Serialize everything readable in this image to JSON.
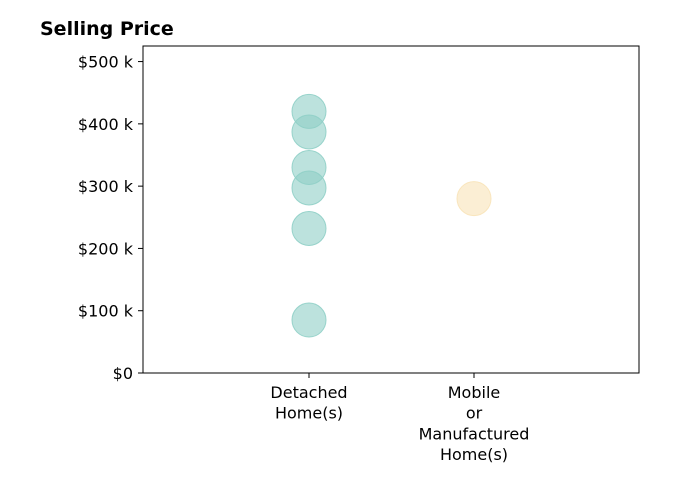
{
  "chart_data": {
    "type": "scatter",
    "title": "Selling Price",
    "xlabel": "",
    "ylabel": "",
    "categories": [
      [
        "Detached",
        "Home(s)"
      ],
      [
        "Mobile",
        "or",
        "Manufactured",
        "Home(s)"
      ]
    ],
    "y_ticks": [
      {
        "value": 0,
        "label": "$0"
      },
      {
        "value": 100000,
        "label": "$100 k"
      },
      {
        "value": 200000,
        "label": "$200 k"
      },
      {
        "value": 300000,
        "label": "$300 k"
      },
      {
        "value": 400000,
        "label": "$400 k"
      },
      {
        "value": 500000,
        "label": "$500 k"
      }
    ],
    "ylim": [
      0,
      525000
    ],
    "grid": false,
    "series": [
      {
        "category_index": 0,
        "color": "#8fcfc6",
        "values": [
          420000,
          387000,
          330000,
          297000,
          232000,
          85000
        ]
      },
      {
        "category_index": 1,
        "color": "#f8e3b8",
        "values": [
          280000
        ]
      }
    ]
  }
}
